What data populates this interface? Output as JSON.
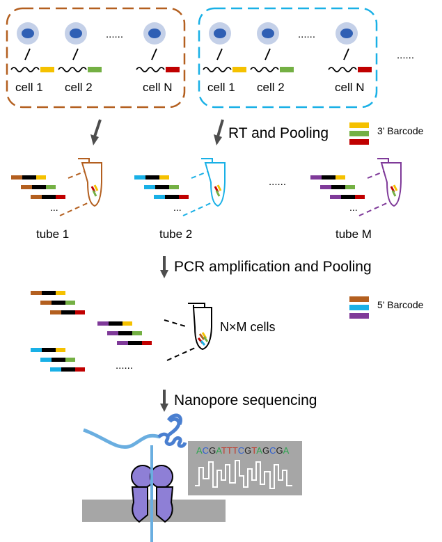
{
  "colors": {
    "group1": "#b35f1f",
    "group2": "#19b0e6",
    "group3": "#7f3a99",
    "barcode_yellow": "#f5c100",
    "barcode_green": "#74b044",
    "barcode_red": "#c00000",
    "cell_outer": "#c4d0e8",
    "cell_nucleus": "#2f5fb4",
    "arrow": "#4d4d4d",
    "membrane": "#a6a6a6",
    "pore": "#8e7fd6",
    "dna_light": "#6aaee0",
    "dna_dark": "#4a7fd0",
    "signal_bg": "#a6a6a6"
  },
  "box1": {
    "cells": [
      "cell 1",
      "cell 2",
      "cell N"
    ],
    "ellipsis": "......"
  },
  "box2": {
    "cells": [
      "cell 1",
      "cell 2",
      "cell N"
    ],
    "ellipsis": "......"
  },
  "boxes_ellipsis": "......",
  "step1": {
    "label": "RT and Pooling"
  },
  "legend_3prime": "3’ Barcode",
  "tubes": [
    {
      "label": "tube 1",
      "color_key": "group1"
    },
    {
      "label": "tube 2",
      "color_key": "group2"
    },
    {
      "label": "tube M",
      "color_key": "group3"
    }
  ],
  "tubes_ellipsis": "......",
  "read_ellipsis": "...",
  "step2": {
    "label": "PCR amplification and Pooling"
  },
  "legend_5prime": "5’ Barcode",
  "pooled_label": "N×M cells",
  "pooled_ellipsis": "......",
  "step3": {
    "label": "Nanopore sequencing"
  },
  "sequence": "ACGATTTCGTAGCGA",
  "sequence_colors": {
    "A": "#2ea44f",
    "C": "#2f5fd0",
    "G": "#222222",
    "T": "#c0392b"
  }
}
